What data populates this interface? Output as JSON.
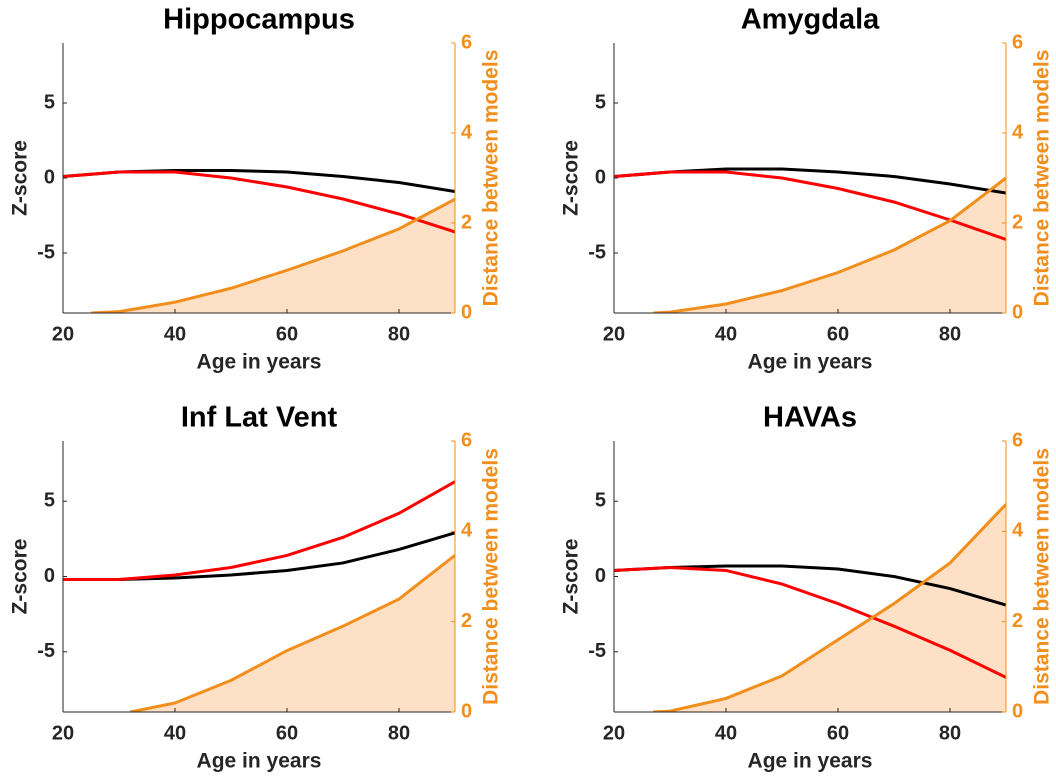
{
  "chart_data": [
    {
      "type": "line",
      "title": "Hippocampus",
      "xlabel": "Age in years",
      "ylabel": "Z-score",
      "y2label": "Distance between models",
      "xlim": [
        20,
        90
      ],
      "xticks": [
        20,
        40,
        60,
        80
      ],
      "ylim": [
        -9,
        9
      ],
      "yticks": [
        -5,
        0,
        5
      ],
      "y2lim": [
        0,
        6
      ],
      "y2ticks": [
        0,
        2,
        4,
        6
      ],
      "series": [
        {
          "color": "#000000",
          "x": [
            20,
            30,
            40,
            50,
            60,
            70,
            80,
            90
          ],
          "values": [
            0.1,
            0.4,
            0.5,
            0.5,
            0.4,
            0.1,
            -0.3,
            -0.9
          ]
        },
        {
          "color": "#ff0000",
          "x": [
            20,
            30,
            40,
            50,
            60,
            70,
            80,
            90
          ],
          "values": [
            0.1,
            0.4,
            0.4,
            0.0,
            -0.6,
            -1.4,
            -2.4,
            -3.6
          ]
        },
        {
          "color": "#f28e1c",
          "fill": "#fde0c5",
          "axis": "y2",
          "x": [
            25,
            30,
            40,
            50,
            60,
            70,
            80,
            90
          ],
          "values": [
            0,
            0.03,
            0.24,
            0.55,
            0.95,
            1.38,
            1.87,
            2.53
          ]
        }
      ]
    },
    {
      "type": "line",
      "title": "Amygdala",
      "xlabel": "Age in years",
      "ylabel": "Z-score",
      "y2label": "Distance between models",
      "xlim": [
        20,
        90
      ],
      "xticks": [
        20,
        40,
        60,
        80
      ],
      "ylim": [
        -9,
        9
      ],
      "yticks": [
        -5,
        0,
        5
      ],
      "y2lim": [
        0,
        6
      ],
      "y2ticks": [
        0,
        2,
        4,
        6
      ],
      "series": [
        {
          "color": "#000000",
          "x": [
            20,
            30,
            40,
            50,
            60,
            70,
            80,
            90
          ],
          "values": [
            0.1,
            0.4,
            0.6,
            0.6,
            0.4,
            0.1,
            -0.4,
            -1.0
          ]
        },
        {
          "color": "#ff0000",
          "x": [
            20,
            30,
            40,
            50,
            60,
            70,
            80,
            90
          ],
          "values": [
            0.1,
            0.4,
            0.4,
            0.0,
            -0.7,
            -1.6,
            -2.8,
            -4.1
          ]
        },
        {
          "color": "#f28e1c",
          "fill": "#fde0c5",
          "axis": "y2",
          "x": [
            27,
            30,
            40,
            50,
            60,
            70,
            80,
            90
          ],
          "values": [
            0,
            0.02,
            0.2,
            0.5,
            0.9,
            1.4,
            2.05,
            3.0
          ]
        }
      ]
    },
    {
      "type": "line",
      "title": "Inf Lat Vent",
      "xlabel": "Age in years",
      "ylabel": "Z-score",
      "y2label": "Distance between models",
      "xlim": [
        20,
        90
      ],
      "xticks": [
        20,
        40,
        60,
        80
      ],
      "ylim": [
        -9,
        9
      ],
      "yticks": [
        -5,
        0,
        5
      ],
      "y2lim": [
        0,
        6
      ],
      "y2ticks": [
        0,
        2,
        4,
        6
      ],
      "series": [
        {
          "color": "#000000",
          "x": [
            20,
            30,
            40,
            50,
            60,
            70,
            80,
            90
          ],
          "values": [
            -0.2,
            -0.2,
            -0.1,
            0.1,
            0.4,
            0.9,
            1.8,
            2.9
          ]
        },
        {
          "color": "#ff0000",
          "x": [
            20,
            30,
            40,
            50,
            60,
            70,
            80,
            90
          ],
          "values": [
            -0.2,
            -0.2,
            0.1,
            0.6,
            1.4,
            2.6,
            4.2,
            6.3
          ]
        },
        {
          "color": "#f28e1c",
          "fill": "#fde0c5",
          "axis": "y2",
          "x": [
            32,
            40,
            50,
            60,
            70,
            80,
            90
          ],
          "values": [
            0,
            0.2,
            0.7,
            1.36,
            1.9,
            2.5,
            3.47
          ]
        }
      ]
    },
    {
      "type": "line",
      "title": "HAVAs",
      "xlabel": "Age in years",
      "ylabel": "Z-score",
      "y2label": "Distance between models",
      "xlim": [
        20,
        90
      ],
      "xticks": [
        20,
        40,
        60,
        80
      ],
      "ylim": [
        -9,
        9
      ],
      "yticks": [
        -5,
        0,
        5
      ],
      "y2lim": [
        0,
        6
      ],
      "y2ticks": [
        0,
        2,
        4,
        6
      ],
      "series": [
        {
          "color": "#000000",
          "x": [
            20,
            30,
            40,
            50,
            60,
            70,
            80,
            90
          ],
          "values": [
            0.4,
            0.6,
            0.7,
            0.7,
            0.5,
            0.0,
            -0.8,
            -1.9
          ]
        },
        {
          "color": "#ff0000",
          "x": [
            20,
            30,
            40,
            50,
            60,
            70,
            80,
            90
          ],
          "values": [
            0.4,
            0.6,
            0.4,
            -0.5,
            -1.8,
            -3.3,
            -4.9,
            -6.7
          ]
        },
        {
          "color": "#f28e1c",
          "fill": "#fde0c5",
          "axis": "y2",
          "x": [
            27,
            30,
            40,
            50,
            60,
            70,
            80,
            90
          ],
          "values": [
            0,
            0.02,
            0.3,
            0.8,
            1.6,
            2.4,
            3.3,
            4.6
          ]
        }
      ]
    }
  ]
}
